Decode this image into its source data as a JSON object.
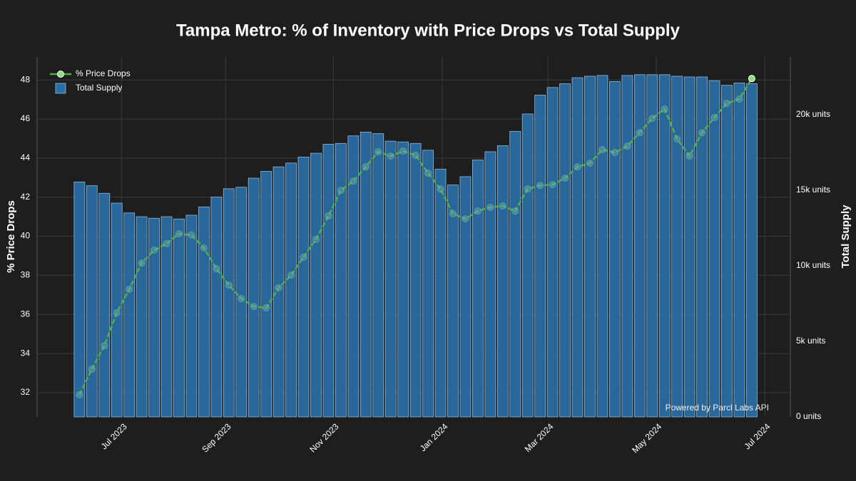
{
  "chart_data": {
    "type": "combo",
    "title": "Tampa Metro: % of Inventory with Price Drops vs Total Supply",
    "y_label": "% Price Drops",
    "y2_label": "Total Supply",
    "watermark": "Powered by Parcl Labs API",
    "legend": "top-left",
    "grid": true,
    "categories": [
      null,
      null,
      null,
      null,
      null,
      null,
      null,
      null,
      null,
      null,
      null,
      null,
      null,
      null,
      null,
      null,
      null,
      null,
      null,
      null,
      null,
      null,
      null,
      null,
      null,
      null,
      null,
      null,
      null,
      null,
      null,
      null,
      null,
      null,
      null,
      null,
      null,
      null,
      null,
      null,
      null,
      null,
      null,
      null,
      null,
      null,
      null,
      null,
      null,
      null,
      null,
      null,
      null,
      null,
      null
    ],
    "xlim": [
      -3.4,
      57.1
    ],
    "xticks": [
      {
        "value": 3.38,
        "label": "Jul 2023"
      },
      {
        "value": 11.74,
        "label": "Sep 2023"
      },
      {
        "value": 20.39,
        "label": "Nov 2023"
      },
      {
        "value": 29.15,
        "label": "Jan 2024"
      },
      {
        "value": 37.63,
        "label": "Mar 2024"
      },
      {
        "value": 46.33,
        "label": "May 2024"
      },
      {
        "value": 55.04,
        "label": "Jul 2024"
      }
    ],
    "ylim": [
      30.76,
      49.17
    ],
    "yticks": [
      32,
      34,
      36,
      38,
      40,
      42,
      44,
      46,
      48
    ],
    "y2lim": [
      0,
      23821
    ],
    "y2ticks": [
      {
        "value": 0,
        "label": "0 units"
      },
      {
        "value": 5000,
        "label": "5k units"
      },
      {
        "value": 10000,
        "label": "10k units"
      },
      {
        "value": 15000,
        "label": "15k units"
      },
      {
        "value": 20000,
        "label": "20k units"
      }
    ],
    "series": [
      {
        "name": "% Price Drops",
        "type": "line",
        "color": "#4caf50",
        "values": [
          31.89,
          33.2,
          34.4,
          36.08,
          37.29,
          38.63,
          39.29,
          39.62,
          40.13,
          40.06,
          39.4,
          38.34,
          37.5,
          36.81,
          36.41,
          36.34,
          37.36,
          38.01,
          38.93,
          39.84,
          41.04,
          42.35,
          42.82,
          43.55,
          44.32,
          44.1,
          44.36,
          44.14,
          43.23,
          42.42,
          41.15,
          40.89,
          41.29,
          41.48,
          41.55,
          41.29,
          42.42,
          42.6,
          42.64,
          42.97,
          43.55,
          43.74,
          44.43,
          44.28,
          44.61,
          45.3,
          46.03,
          46.51,
          44.98,
          44.1,
          45.3,
          46.07,
          46.8,
          47.02,
          48.07
        ]
      },
      {
        "name": "Total Supply",
        "type": "bar",
        "axis": "y2",
        "color": "#2a6fa8",
        "values": [
          15550,
          15300,
          14800,
          14150,
          13500,
          13250,
          13150,
          13250,
          13100,
          13350,
          13900,
          14550,
          15100,
          15200,
          15800,
          16250,
          16550,
          16800,
          17200,
          17450,
          18050,
          18100,
          18600,
          18850,
          18750,
          18250,
          18200,
          18100,
          17650,
          16400,
          15350,
          15900,
          17000,
          17550,
          17950,
          18900,
          20050,
          21300,
          21800,
          22050,
          22450,
          22550,
          22600,
          22200,
          22600,
          22650,
          22650,
          22650,
          22550,
          22500,
          22500,
          22250,
          21950,
          22100,
          22050
        ]
      }
    ]
  }
}
